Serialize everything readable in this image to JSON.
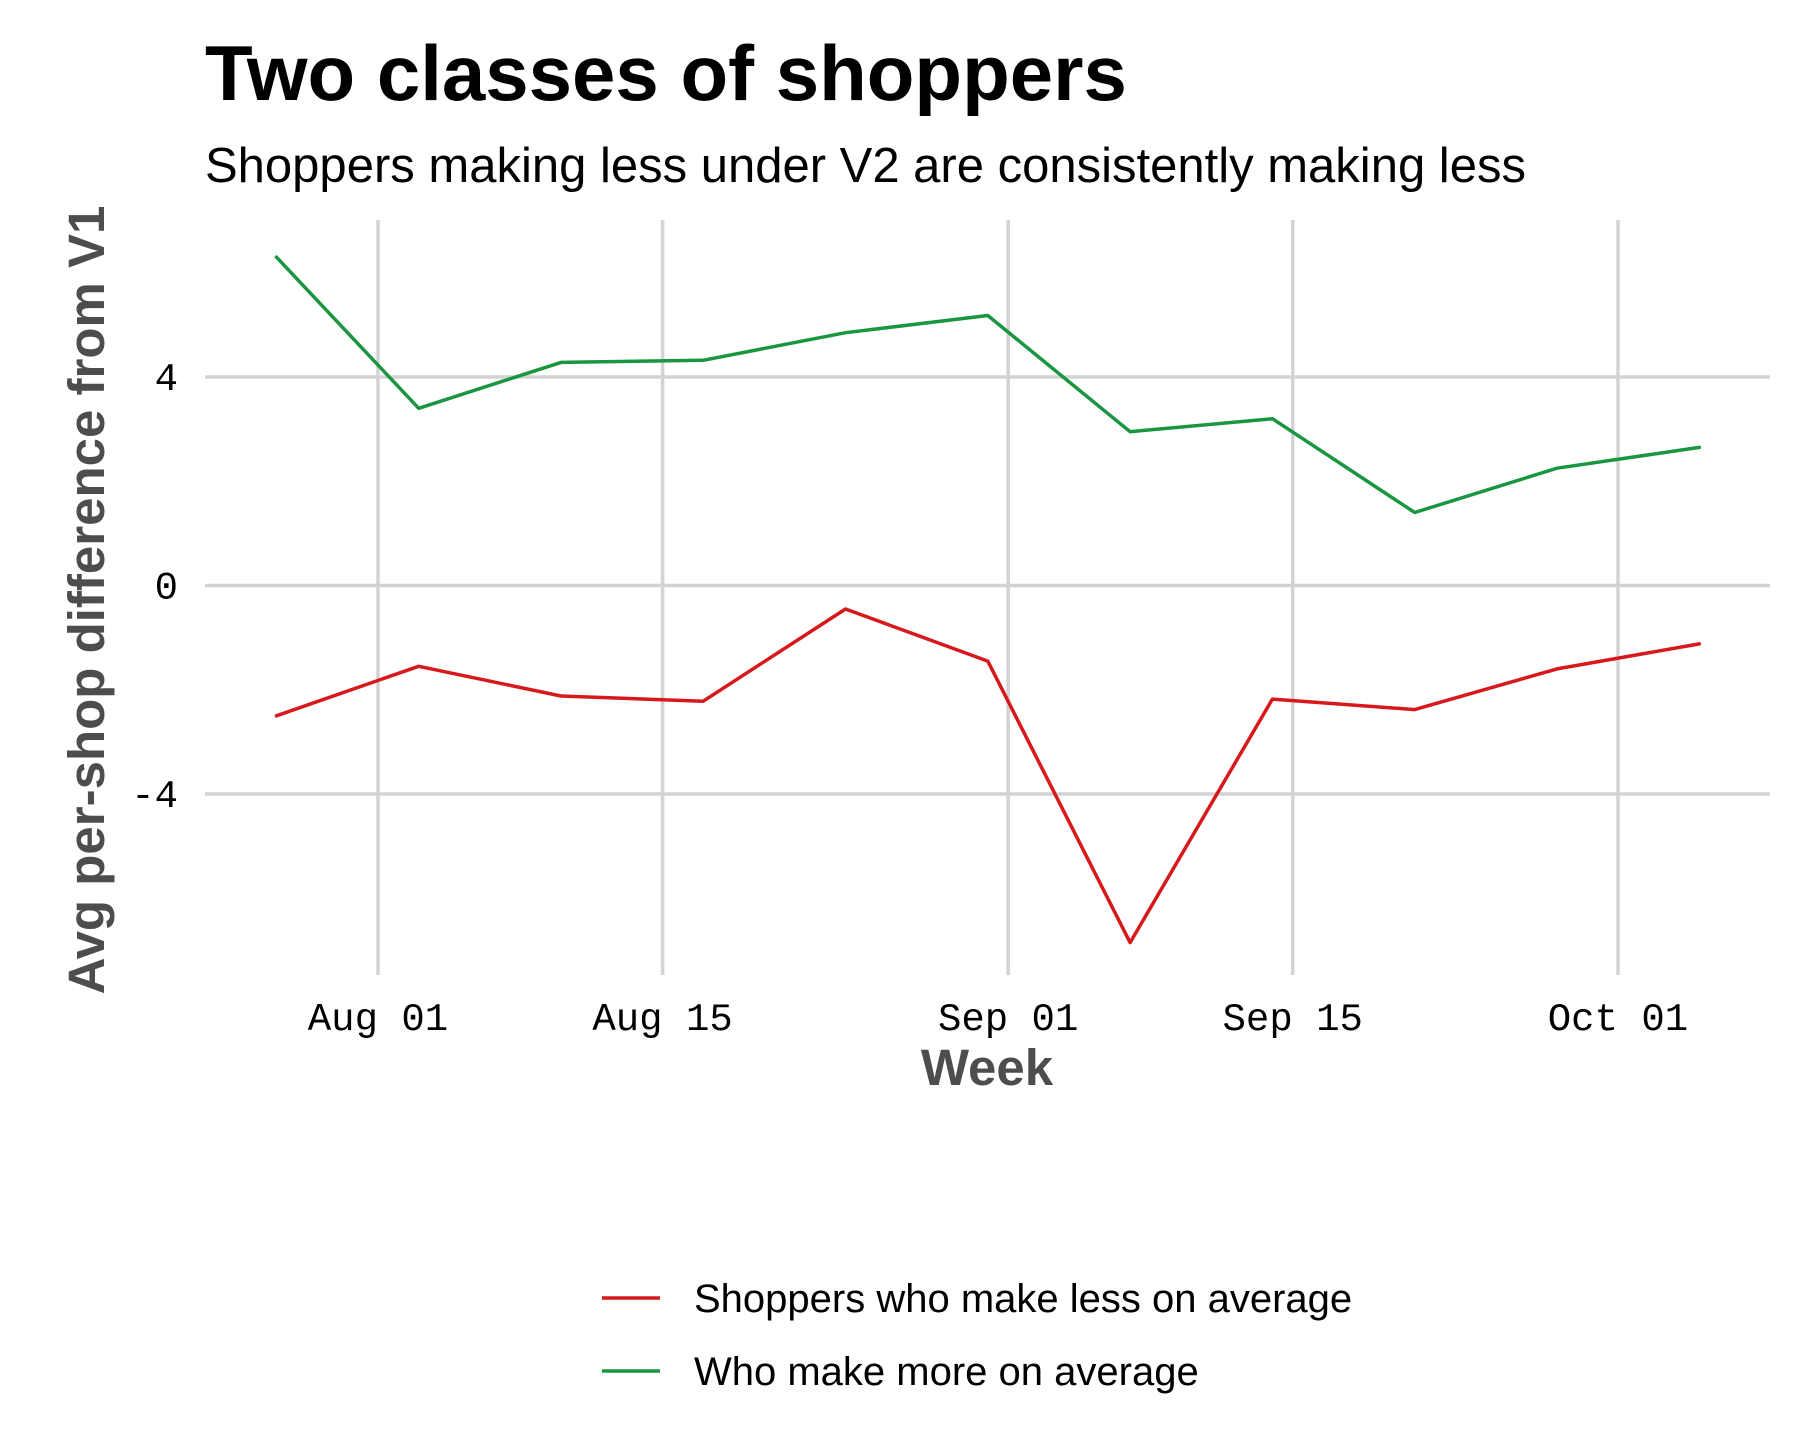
{
  "chart_data": {
    "type": "line",
    "title": "Two classes of shoppers",
    "subtitle": "Shoppers making less under V2 are consistently making less",
    "xlabel": "Week",
    "ylabel": "Avg per-shop difference from V1",
    "x_type": "date",
    "x_ticks": [
      {
        "date": "2023-08-01",
        "label": "Aug 01"
      },
      {
        "date": "2023-08-15",
        "label": "Aug 15"
      },
      {
        "date": "2023-09-01",
        "label": "Sep 01"
      },
      {
        "date": "2023-09-15",
        "label": "Sep 15"
      },
      {
        "date": "2023-10-01",
        "label": "Oct 01"
      }
    ],
    "y_ticks": [
      {
        "value": 4,
        "label": "4"
      },
      {
        "value": 0,
        "label": "0"
      },
      {
        "value": -4,
        "label": "-4"
      }
    ],
    "xlim": [
      "2023-07-26",
      "2023-10-09"
    ],
    "ylim": [
      -7.5,
      7.0
    ],
    "grid": true,
    "legend_position": "bottom",
    "x": [
      "2023-07-27",
      "2023-08-03",
      "2023-08-10",
      "2023-08-17",
      "2023-08-24",
      "2023-08-31",
      "2023-09-07",
      "2023-09-14",
      "2023-09-21",
      "2023-09-28",
      "2023-10-05"
    ],
    "series": [
      {
        "name": "Shoppers who make less on average",
        "color": "#d7191c",
        "values": [
          -2.5,
          -1.55,
          -2.12,
          -2.22,
          -0.45,
          -1.45,
          -6.85,
          -2.18,
          -2.38,
          -1.6,
          -1.12
        ]
      },
      {
        "name": "Who make more on average",
        "color": "#1a9641",
        "values": [
          6.3,
          3.4,
          4.28,
          4.32,
          4.85,
          5.18,
          2.95,
          3.2,
          1.4,
          2.25,
          2.65
        ]
      }
    ]
  }
}
